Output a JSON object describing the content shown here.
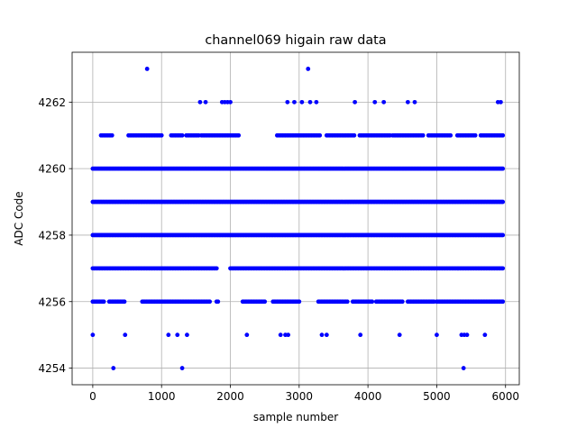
{
  "chart_data": {
    "type": "scatter",
    "title": "channel069 higain raw data",
    "xlabel": "sample number",
    "ylabel": "ADC Code",
    "xlim": [
      -300,
      6200
    ],
    "ylim": [
      4253.5,
      4263.5
    ],
    "xticks": [
      0,
      1000,
      2000,
      3000,
      4000,
      5000,
      6000
    ],
    "yticks": [
      4254,
      4256,
      4258,
      4260,
      4262
    ],
    "grid": true,
    "legend": "none",
    "marker_color": "#0000ff",
    "series": [
      {
        "points": [
          {
            "x": 300,
            "y": 4254
          },
          {
            "x": 1300,
            "y": 4254
          },
          {
            "x": 5390,
            "y": 4254
          },
          {
            "x": 0,
            "y": 4255
          },
          {
            "x": 470,
            "y": 4255
          },
          {
            "x": 1100,
            "y": 4255
          },
          {
            "x": 1230,
            "y": 4255
          },
          {
            "x": 1370,
            "y": 4255
          },
          {
            "x": 2240,
            "y": 4255
          },
          {
            "x": 2730,
            "y": 4255
          },
          {
            "x": 2800,
            "y": 4255
          },
          {
            "x": 2840,
            "y": 4255
          },
          {
            "x": 3330,
            "y": 4255
          },
          {
            "x": 3400,
            "y": 4255
          },
          {
            "x": 3890,
            "y": 4255
          },
          {
            "x": 4460,
            "y": 4255
          },
          {
            "x": 5000,
            "y": 4255
          },
          {
            "x": 5360,
            "y": 4255
          },
          {
            "x": 5400,
            "y": 4255
          },
          {
            "x": 5440,
            "y": 4255
          },
          {
            "x": 5700,
            "y": 4255
          },
          {
            "x": 790,
            "y": 4263
          },
          {
            "x": 3130,
            "y": 4263
          },
          {
            "x": 1560,
            "y": 4262
          },
          {
            "x": 1640,
            "y": 4262
          },
          {
            "x": 1880,
            "y": 4262
          },
          {
            "x": 1920,
            "y": 4262
          },
          {
            "x": 1960,
            "y": 4262
          },
          {
            "x": 2000,
            "y": 4262
          },
          {
            "x": 2830,
            "y": 4262
          },
          {
            "x": 2930,
            "y": 4262
          },
          {
            "x": 3040,
            "y": 4262
          },
          {
            "x": 3160,
            "y": 4262
          },
          {
            "x": 3250,
            "y": 4262
          },
          {
            "x": 3810,
            "y": 4262
          },
          {
            "x": 4100,
            "y": 4262
          },
          {
            "x": 4230,
            "y": 4262
          },
          {
            "x": 4580,
            "y": 4262
          },
          {
            "x": 4680,
            "y": 4262
          },
          {
            "x": 5890,
            "y": 4262
          },
          {
            "x": 5930,
            "y": 4262
          }
        ],
        "bands": [
          {
            "y": 4256,
            "x_ranges": [
              [
                0,
                160
              ],
              [
                240,
                460
              ],
              [
                720,
                1700
              ],
              [
                1800,
                1820
              ],
              [
                2180,
                2500
              ],
              [
                2620,
                3000
              ],
              [
                3280,
                3700
              ],
              [
                3780,
                4060
              ],
              [
                4120,
                4500
              ],
              [
                4580,
                4960
              ],
              [
                5000,
                5960
              ]
            ]
          },
          {
            "y": 4257,
            "x_ranges": [
              [
                0,
                1800
              ],
              [
                2000,
                5960
              ]
            ]
          },
          {
            "y": 4258,
            "x_ranges": [
              [
                0,
                5960
              ]
            ]
          },
          {
            "y": 4259,
            "x_ranges": [
              [
                0,
                5960
              ]
            ]
          },
          {
            "y": 4260,
            "x_ranges": [
              [
                0,
                5960
              ]
            ]
          },
          {
            "y": 4261,
            "x_ranges": [
              [
                120,
                280
              ],
              [
                520,
                1000
              ],
              [
                1140,
                1300
              ],
              [
                1360,
                1540
              ],
              [
                1580,
                2120
              ],
              [
                2680,
                3300
              ],
              [
                3400,
                3800
              ],
              [
                3880,
                4320
              ],
              [
                4360,
                4800
              ],
              [
                4880,
                5200
              ],
              [
                5300,
                5560
              ],
              [
                5640,
                5960
              ]
            ]
          }
        ]
      }
    ]
  }
}
